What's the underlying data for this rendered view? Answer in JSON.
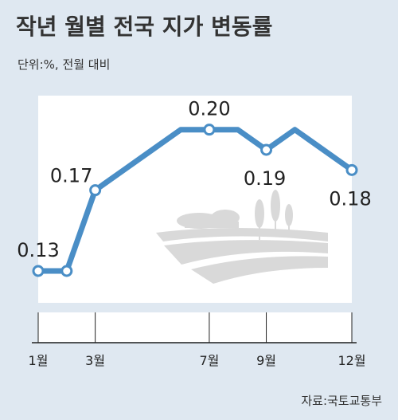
{
  "title": "작년 월별 전국 지가 변동률",
  "unit": "단위:%, 전월 대비",
  "source": "자료:국토교통부",
  "colors": {
    "line": "#4a8ec6",
    "background": "#dfe8f1",
    "plot": "#ffffff",
    "emblem": "#d8d8d8"
  },
  "chart_data": {
    "type": "line",
    "x": [
      1,
      2,
      3,
      4,
      5,
      6,
      7,
      8,
      9,
      10,
      11,
      12
    ],
    "values": [
      0.13,
      0.13,
      0.17,
      0.18,
      0.19,
      0.2,
      0.2,
      0.2,
      0.19,
      0.2,
      0.19,
      0.18
    ],
    "tick_labels": [
      "1월",
      "3월",
      "7월",
      "9월",
      "12월"
    ],
    "tick_months": [
      1,
      3,
      7,
      9,
      12
    ],
    "data_labels": [
      {
        "month": 1,
        "text": "0.13"
      },
      {
        "month": 3,
        "text": "0.17"
      },
      {
        "month": 7,
        "text": "0.20"
      },
      {
        "month": 9,
        "text": "0.19"
      },
      {
        "month": 12,
        "text": "0.18"
      }
    ],
    "marked_months": [
      1,
      2,
      3,
      7,
      9,
      12
    ],
    "ylim": [
      0.115,
      0.205
    ],
    "grid": false,
    "legend": "none"
  }
}
